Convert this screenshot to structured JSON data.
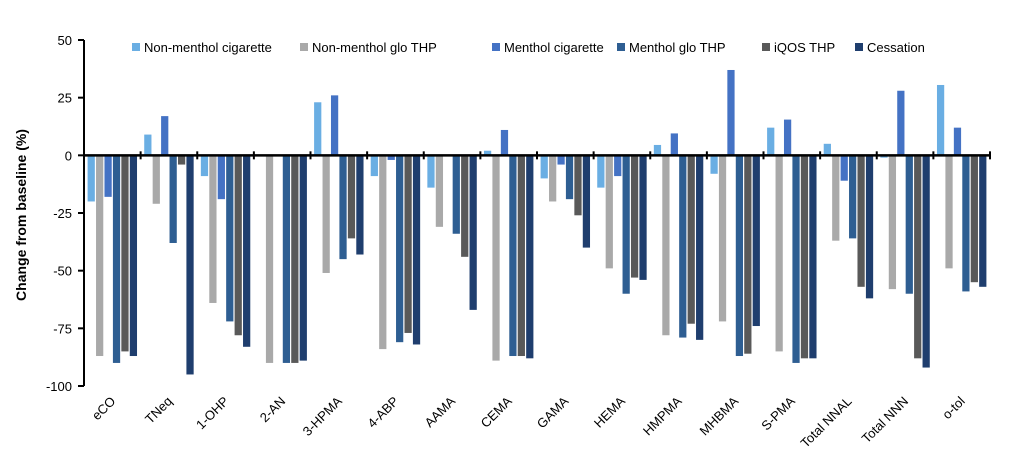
{
  "chart_data": {
    "type": "bar",
    "title": "",
    "xlabel": "",
    "ylabel": "Change from baseline (%)",
    "ylim": [
      -100,
      50
    ],
    "yticks": [
      50,
      25,
      0,
      -25,
      -50,
      -75,
      -100
    ],
    "ytick_labels": [
      "50",
      "25",
      "0",
      "-25",
      "-50",
      "-75",
      "-100"
    ],
    "grid": false,
    "legend_position": "top",
    "categories": [
      "eCO",
      "TNeq",
      "1-OHP",
      "2-AN",
      "3-HPMA",
      "4-ABP",
      "AAMA",
      "CEMA",
      "GAMA",
      "HEMA",
      "HMPMA",
      "MHBMA",
      "S-PMA",
      "Total NNAL",
      "Total NNN",
      "o-tol"
    ],
    "series": [
      {
        "name": "Non-menthol cigarette",
        "color": "#6AAEE3",
        "values": [
          -20,
          9,
          -9,
          0,
          23,
          -9,
          -14,
          2,
          -10,
          -14,
          4.5,
          -8,
          12,
          5,
          -1,
          30.5
        ]
      },
      {
        "name": "Non-menthol glo THP",
        "color": "#A9A9A9",
        "values": [
          -87,
          -21,
          -64,
          -90,
          -51,
          -84,
          -31,
          -89,
          -20,
          -49,
          -78,
          -72,
          -85,
          -37,
          -58,
          -49
        ]
      },
      {
        "name": "Menthol cigarette",
        "color": "#4472C4",
        "values": [
          -18,
          17,
          -19,
          0,
          26,
          -2,
          0,
          11,
          -4,
          -9,
          9.5,
          37,
          15.5,
          -11,
          28,
          12
        ]
      },
      {
        "name": "Menthol glo THP",
        "color": "#2E5E92",
        "values": [
          -90,
          -38,
          -72,
          -90,
          -45,
          -81,
          -34,
          -87,
          -19,
          -60,
          -79,
          -87,
          -90,
          -36,
          -60,
          -59
        ]
      },
      {
        "name": "iQOS THP",
        "color": "#595959",
        "values": [
          -85,
          -4,
          -78,
          -90,
          -36,
          -77,
          -44,
          -87,
          -26,
          -53,
          -73,
          -86,
          -88,
          -57,
          -88,
          -55
        ]
      },
      {
        "name": "Cessation",
        "color": "#1F3E6E",
        "values": [
          -87,
          -95,
          -83,
          -89,
          -43,
          -82,
          -67,
          -88,
          -40,
          -54,
          -80,
          -74,
          -88,
          -62,
          -92,
          -57
        ]
      }
    ]
  }
}
